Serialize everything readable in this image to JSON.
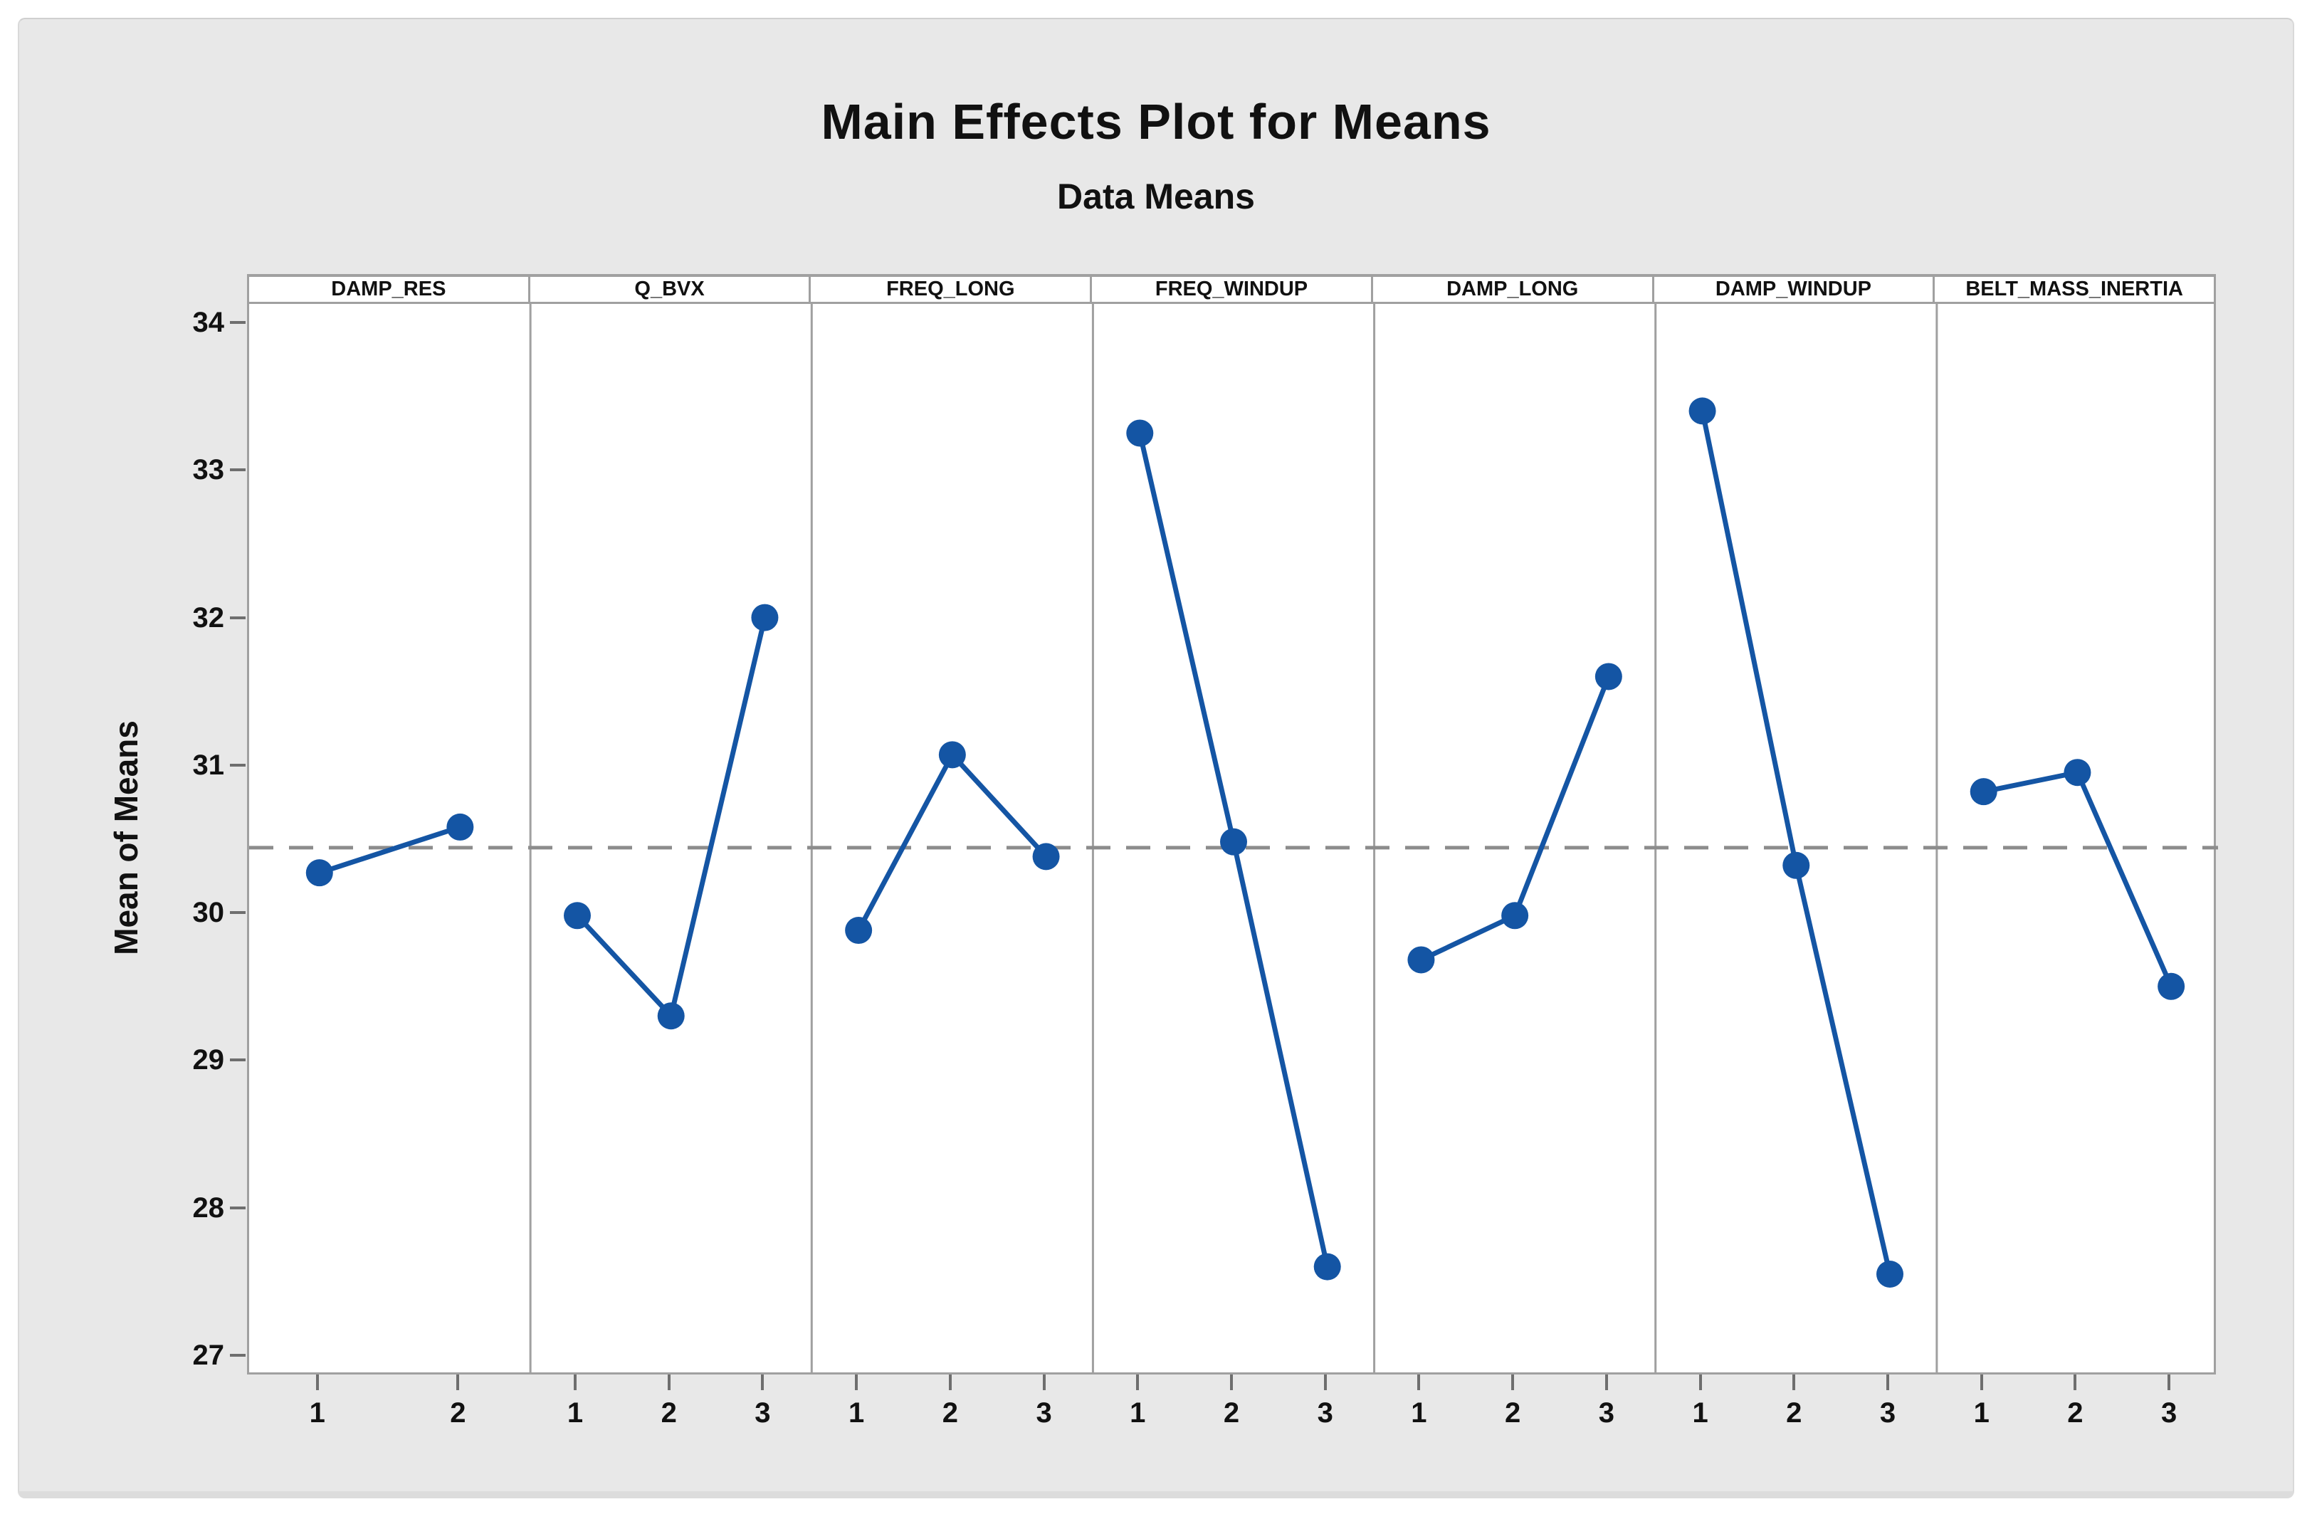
{
  "title": "Main Effects Plot for Means",
  "subtitle": "Data Means",
  "ylabel": "Mean of Means",
  "chart_data": {
    "type": "line",
    "description": "Minitab-style main effects plot with 7 factor panels sharing one y axis",
    "facets": [
      {
        "label": "DAMP_RES",
        "levels": [
          "1",
          "2"
        ],
        "values": [
          30.27,
          30.58
        ]
      },
      {
        "label": "Q_BVX",
        "levels": [
          "1",
          "2",
          "3"
        ],
        "values": [
          29.98,
          29.3,
          32.0
        ]
      },
      {
        "label": "FREQ_LONG",
        "levels": [
          "1",
          "2",
          "3"
        ],
        "values": [
          29.88,
          31.07,
          30.38
        ]
      },
      {
        "label": "FREQ_WINDUP",
        "levels": [
          "1",
          "2",
          "3"
        ],
        "values": [
          33.25,
          30.48,
          27.6
        ]
      },
      {
        "label": "DAMP_LONG",
        "levels": [
          "1",
          "2",
          "3"
        ],
        "values": [
          29.68,
          29.98,
          31.6
        ]
      },
      {
        "label": "DAMP_WINDUP",
        "levels": [
          "1",
          "2",
          "3"
        ],
        "values": [
          33.4,
          30.32,
          27.55
        ]
      },
      {
        "label": "BELT_MASS_INERTIA",
        "levels": [
          "1",
          "2",
          "3"
        ],
        "values": [
          30.82,
          30.95,
          29.5
        ]
      }
    ],
    "yticks": [
      34,
      33,
      32,
      31,
      30,
      29,
      28,
      27
    ],
    "axis": {
      "y_min": 27,
      "y_max": 34,
      "grid": false,
      "legend": "none"
    },
    "reference_line_mean": 30.44,
    "colors": {
      "series": "#1455A4",
      "reference_line": "#8C8C8C",
      "frame": "#A0A0A0",
      "figure_background": "#E8E8E8",
      "panel_background": "#FFFFFF",
      "text": "#111111"
    }
  }
}
